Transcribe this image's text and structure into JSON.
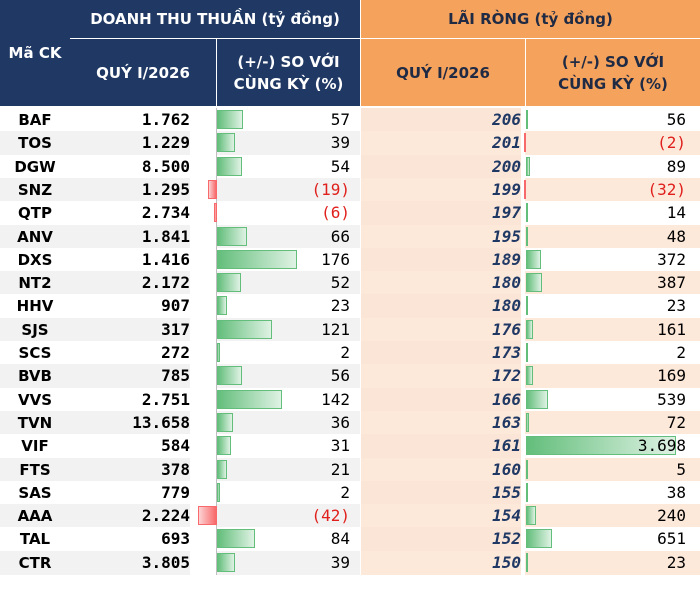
{
  "header": {
    "ma_ck": "Mã CK",
    "doanh_thu": "DOANH THU THUẦN (tỷ đồng)",
    "lai_rong": "LÃI RÒNG (tỷ đồng)",
    "quy": "QUÝ I/2026",
    "so_voi_line1": "(+/-) SO VỚI",
    "so_voi_line2": "CÙNG KỲ (%)"
  },
  "colors": {
    "header_blue": "#1f3864",
    "header_orange": "#f4a25c",
    "positive_bar": "#63be7b",
    "negative_bar": "#f8696b",
    "negative_text": "#e0201c"
  },
  "rows": [
    {
      "code": "BAF",
      "revenue": "1.762",
      "rev_change": "57",
      "rev_change_value": 57,
      "profit": "206",
      "profit_change": "56",
      "profit_change_value": 56
    },
    {
      "code": "TOS",
      "revenue": "1.229",
      "rev_change": "39",
      "rev_change_value": 39,
      "profit": "201",
      "profit_change": "(2)",
      "profit_change_value": -2
    },
    {
      "code": "DGW",
      "revenue": "8.500",
      "rev_change": "54",
      "rev_change_value": 54,
      "profit": "200",
      "profit_change": "89",
      "profit_change_value": 89
    },
    {
      "code": "SNZ",
      "revenue": "1.295",
      "rev_change": "(19)",
      "rev_change_value": -19,
      "profit": "199",
      "profit_change": "(32)",
      "profit_change_value": -32
    },
    {
      "code": "QTP",
      "revenue": "2.734",
      "rev_change": "(6)",
      "rev_change_value": -6,
      "profit": "197",
      "profit_change": "14",
      "profit_change_value": 14
    },
    {
      "code": "ANV",
      "revenue": "1.841",
      "rev_change": "66",
      "rev_change_value": 66,
      "profit": "195",
      "profit_change": "48",
      "profit_change_value": 48
    },
    {
      "code": "DXS",
      "revenue": "1.416",
      "rev_change": "176",
      "rev_change_value": 176,
      "profit": "189",
      "profit_change": "372",
      "profit_change_value": 372
    },
    {
      "code": "NT2",
      "revenue": "2.172",
      "rev_change": "52",
      "rev_change_value": 52,
      "profit": "180",
      "profit_change": "387",
      "profit_change_value": 387
    },
    {
      "code": "HHV",
      "revenue": "907",
      "rev_change": "23",
      "rev_change_value": 23,
      "profit": "180",
      "profit_change": "23",
      "profit_change_value": 23
    },
    {
      "code": "SJS",
      "revenue": "317",
      "rev_change": "121",
      "rev_change_value": 121,
      "profit": "176",
      "profit_change": "161",
      "profit_change_value": 161
    },
    {
      "code": "SCS",
      "revenue": "272",
      "rev_change": "2",
      "rev_change_value": 2,
      "profit": "173",
      "profit_change": "2",
      "profit_change_value": 2
    },
    {
      "code": "BVB",
      "revenue": "785",
      "rev_change": "56",
      "rev_change_value": 56,
      "profit": "172",
      "profit_change": "169",
      "profit_change_value": 169
    },
    {
      "code": "VVS",
      "revenue": "2.751",
      "rev_change": "142",
      "rev_change_value": 142,
      "profit": "166",
      "profit_change": "539",
      "profit_change_value": 539
    },
    {
      "code": "TVN",
      "revenue": "13.658",
      "rev_change": "36",
      "rev_change_value": 36,
      "profit": "163",
      "profit_change": "72",
      "profit_change_value": 72
    },
    {
      "code": "VIF",
      "revenue": "584",
      "rev_change": "31",
      "rev_change_value": 31,
      "profit": "161",
      "profit_change": "3.698",
      "profit_change_value": 3698
    },
    {
      "code": "FTS",
      "revenue": "378",
      "rev_change": "21",
      "rev_change_value": 21,
      "profit": "160",
      "profit_change": "5",
      "profit_change_value": 5
    },
    {
      "code": "SAS",
      "revenue": "779",
      "rev_change": "2",
      "rev_change_value": 2,
      "profit": "155",
      "profit_change": "38",
      "profit_change_value": 38
    },
    {
      "code": "AAA",
      "revenue": "2.224",
      "rev_change": "(42)",
      "rev_change_value": -42,
      "profit": "154",
      "profit_change": "240",
      "profit_change_value": 240
    },
    {
      "code": "TAL",
      "revenue": "693",
      "rev_change": "84",
      "rev_change_value": 84,
      "profit": "152",
      "profit_change": "651",
      "profit_change_value": 651
    },
    {
      "code": "CTR",
      "revenue": "3.805",
      "rev_change": "39",
      "rev_change_value": 39,
      "profit": "150",
      "profit_change": "23",
      "profit_change_value": 23
    }
  ]
}
